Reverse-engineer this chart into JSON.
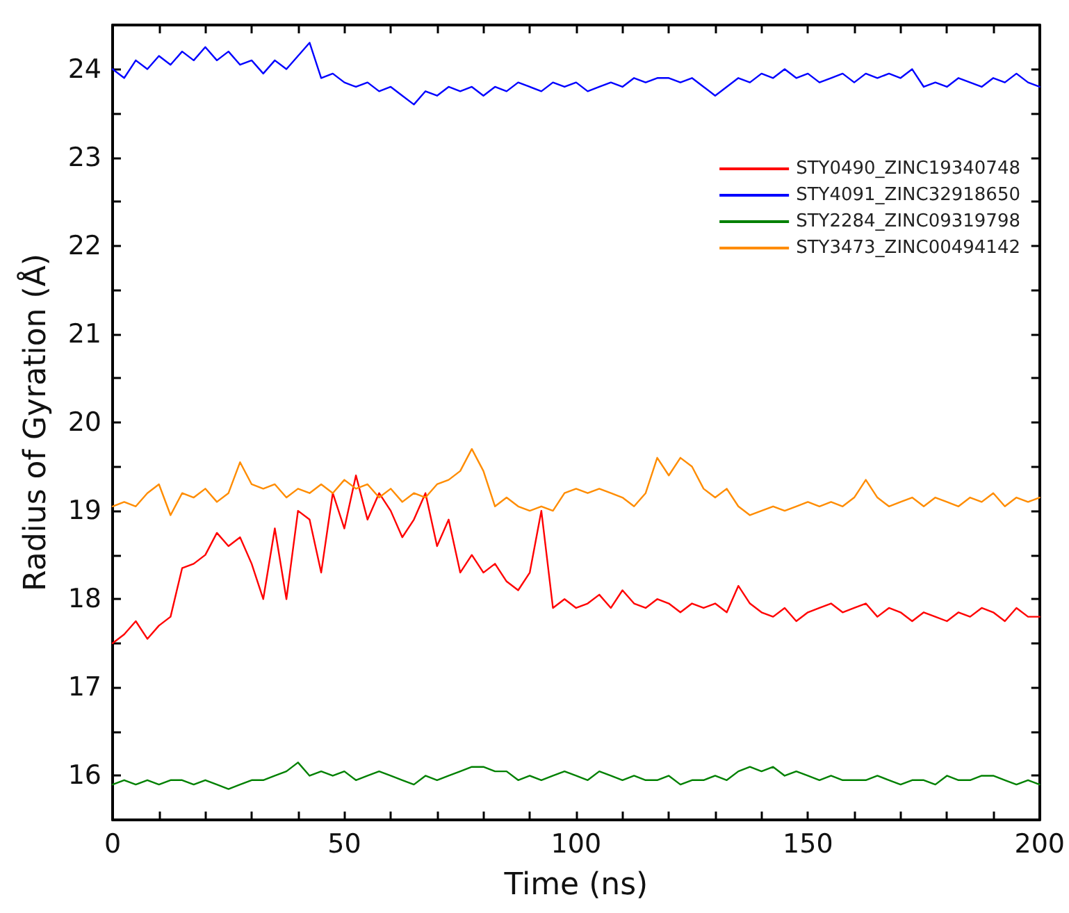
{
  "chart_data": {
    "type": "line",
    "xlabel": "Time (ns)",
    "ylabel": "Radius of Gyration (Å)",
    "x": [
      0,
      2.5,
      5,
      7.5,
      10,
      12.5,
      15,
      17.5,
      20,
      22.5,
      25,
      27.5,
      30,
      32.5,
      35,
      37.5,
      40,
      42.5,
      45,
      47.5,
      50,
      52.5,
      55,
      57.5,
      60,
      62.5,
      65,
      67.5,
      70,
      72.5,
      75,
      77.5,
      80,
      82.5,
      85,
      87.5,
      90,
      92.5,
      95,
      97.5,
      100,
      102.5,
      105,
      107.5,
      110,
      112.5,
      115,
      117.5,
      120,
      122.5,
      125,
      127.5,
      130,
      132.5,
      135,
      137.5,
      140,
      142.5,
      145,
      147.5,
      150,
      152.5,
      155,
      157.5,
      160,
      162.5,
      165,
      167.5,
      170,
      172.5,
      175,
      177.5,
      180,
      182.5,
      185,
      187.5,
      190,
      192.5,
      195,
      197.5,
      200
    ],
    "series": [
      {
        "name": "STY0490_ZINC19340748",
        "color": "#ff0000",
        "values": [
          17.5,
          17.6,
          17.75,
          17.55,
          17.7,
          17.8,
          18.35,
          18.4,
          18.5,
          18.75,
          18.6,
          18.7,
          18.4,
          18.0,
          18.8,
          18.0,
          19.0,
          18.9,
          18.3,
          19.2,
          18.8,
          19.4,
          18.9,
          19.2,
          19.0,
          18.7,
          18.9,
          19.2,
          18.6,
          18.9,
          18.3,
          18.5,
          18.3,
          18.4,
          18.2,
          18.1,
          18.3,
          19.0,
          17.9,
          18.0,
          17.9,
          17.95,
          18.05,
          17.9,
          18.1,
          17.95,
          17.9,
          18.0,
          17.95,
          17.85,
          17.95,
          17.9,
          17.95,
          17.85,
          18.15,
          17.95,
          17.85,
          17.8,
          17.9,
          17.75,
          17.85,
          17.9,
          17.95,
          17.85,
          17.9,
          17.95,
          17.8,
          17.9,
          17.85,
          17.75,
          17.85,
          17.8,
          17.75,
          17.85,
          17.8,
          17.9,
          17.85,
          17.75,
          17.9,
          17.8,
          17.8
        ]
      },
      {
        "name": "STY4091_ZINC32918650",
        "color": "#0000ff",
        "values": [
          24.0,
          23.9,
          24.1,
          24.0,
          24.15,
          24.05,
          24.2,
          24.1,
          24.25,
          24.1,
          24.2,
          24.05,
          24.1,
          23.95,
          24.1,
          24.0,
          24.15,
          24.3,
          23.9,
          23.95,
          23.85,
          23.8,
          23.85,
          23.75,
          23.8,
          23.7,
          23.6,
          23.75,
          23.7,
          23.8,
          23.75,
          23.8,
          23.7,
          23.8,
          23.75,
          23.85,
          23.8,
          23.75,
          23.85,
          23.8,
          23.85,
          23.75,
          23.8,
          23.85,
          23.8,
          23.9,
          23.85,
          23.9,
          23.9,
          23.85,
          23.9,
          23.8,
          23.7,
          23.8,
          23.9,
          23.85,
          23.95,
          23.9,
          24.0,
          23.9,
          23.95,
          23.85,
          23.9,
          23.95,
          23.85,
          23.95,
          23.9,
          23.95,
          23.9,
          24.0,
          23.8,
          23.85,
          23.8,
          23.9,
          23.85,
          23.8,
          23.9,
          23.85,
          23.95,
          23.85,
          23.8
        ]
      },
      {
        "name": "STY2284_ZINC09319798",
        "color": "#008000",
        "values": [
          15.9,
          15.95,
          15.9,
          15.95,
          15.9,
          15.95,
          15.95,
          15.9,
          15.95,
          15.9,
          15.85,
          15.9,
          15.95,
          15.95,
          16.0,
          16.05,
          16.15,
          16.0,
          16.05,
          16.0,
          16.05,
          15.95,
          16.0,
          16.05,
          16.0,
          15.95,
          15.9,
          16.0,
          15.95,
          16.0,
          16.05,
          16.1,
          16.1,
          16.05,
          16.05,
          15.95,
          16.0,
          15.95,
          16.0,
          16.05,
          16.0,
          15.95,
          16.05,
          16.0,
          15.95,
          16.0,
          15.95,
          15.95,
          16.0,
          15.9,
          15.95,
          15.95,
          16.0,
          15.95,
          16.05,
          16.1,
          16.05,
          16.1,
          16.0,
          16.05,
          16.0,
          15.95,
          16.0,
          15.95,
          15.95,
          15.95,
          16.0,
          15.95,
          15.9,
          15.95,
          15.95,
          15.9,
          16.0,
          15.95,
          15.95,
          16.0,
          16.0,
          15.95,
          15.9,
          15.95,
          15.9
        ]
      },
      {
        "name": "STY3473_ZINC00494142",
        "color": "#ff8c00",
        "values": [
          19.05,
          19.1,
          19.05,
          19.2,
          19.3,
          18.95,
          19.2,
          19.15,
          19.25,
          19.1,
          19.2,
          19.55,
          19.3,
          19.25,
          19.3,
          19.15,
          19.25,
          19.2,
          19.3,
          19.2,
          19.35,
          19.25,
          19.3,
          19.15,
          19.25,
          19.1,
          19.2,
          19.15,
          19.3,
          19.35,
          19.45,
          19.7,
          19.45,
          19.05,
          19.15,
          19.05,
          19.0,
          19.05,
          19.0,
          19.2,
          19.25,
          19.2,
          19.25,
          19.2,
          19.15,
          19.05,
          19.2,
          19.6,
          19.4,
          19.6,
          19.5,
          19.25,
          19.15,
          19.25,
          19.05,
          18.95,
          19.0,
          19.05,
          19.0,
          19.05,
          19.1,
          19.05,
          19.1,
          19.05,
          19.15,
          19.35,
          19.15,
          19.05,
          19.1,
          19.15,
          19.05,
          19.15,
          19.1,
          19.05,
          19.15,
          19.1,
          19.2,
          19.05,
          19.15,
          19.1,
          19.15
        ]
      }
    ],
    "xlim": [
      0,
      200
    ],
    "xticks": [
      0,
      {
        "value": 10,
        "label": null
      },
      {
        "value": 20,
        "label": null
      },
      {
        "value": 30,
        "label": null
      },
      {
        "value": 40,
        "label": null
      },
      50,
      {
        "value": 60,
        "label": null
      },
      {
        "value": 70,
        "label": null
      },
      {
        "value": 80,
        "label": null
      },
      {
        "value": 90,
        "label": null
      },
      100,
      {
        "value": 110,
        "label": null
      },
      {
        "value": 120,
        "label": null
      },
      {
        "value": 130,
        "label": null
      },
      {
        "value": 140,
        "label": null
      },
      150,
      {
        "value": 160,
        "label": null
      },
      {
        "value": 170,
        "label": null
      },
      {
        "value": 180,
        "label": null
      },
      {
        "value": 190,
        "label": null
      },
      200
    ],
    "ylim": [
      15.5,
      24.5
    ],
    "yticks": [
      {
        "value": 15.5,
        "label": null
      },
      16,
      {
        "value": 16.5,
        "label": null
      },
      17,
      {
        "value": 17.5,
        "label": null
      },
      18,
      {
        "value": 18.5,
        "label": null
      },
      19,
      {
        "value": 19.5,
        "label": null
      },
      20,
      {
        "value": 20.5,
        "label": null
      },
      21,
      {
        "value": 21.5,
        "label": null
      },
      22,
      {
        "value": 22.5,
        "label": null
      },
      23,
      {
        "value": 23.5,
        "label": null
      },
      24,
      {
        "value": 24.5,
        "label": null
      }
    ],
    "grid": false,
    "legend": "top right",
    "marker": "none",
    "line_style": "solid"
  }
}
